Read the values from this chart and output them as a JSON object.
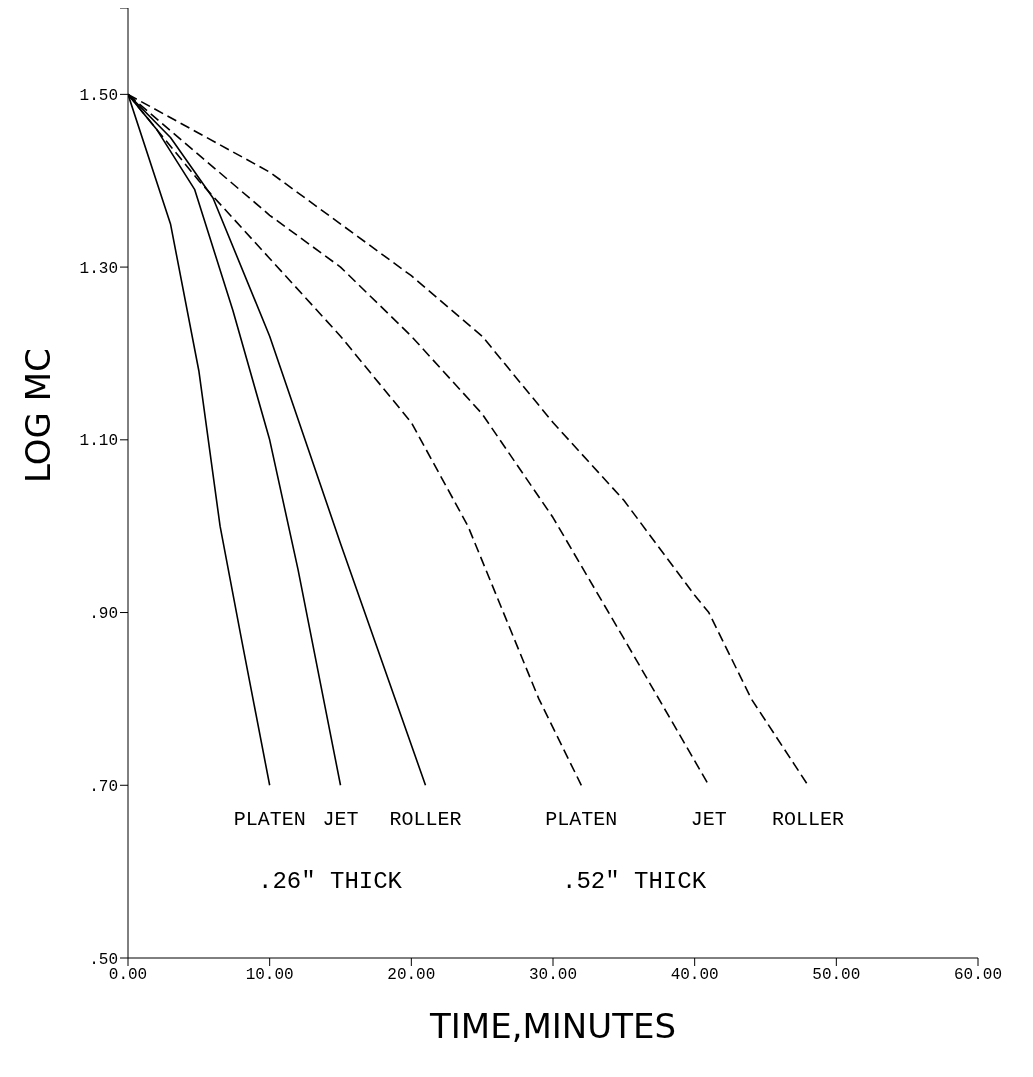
{
  "chart_data": {
    "type": "line",
    "xlabel": "TIME,MINUTES",
    "ylabel": "LOG MC",
    "xlim": [
      0,
      60
    ],
    "ylim": [
      0.5,
      1.6
    ],
    "xticks": [
      {
        "value": 0,
        "label": "0.00"
      },
      {
        "value": 10,
        "label": "10.00"
      },
      {
        "value": 20,
        "label": "20.00"
      },
      {
        "value": 30,
        "label": "30.00"
      },
      {
        "value": 40,
        "label": "40.00"
      },
      {
        "value": 50,
        "label": "50.00"
      },
      {
        "value": 60,
        "label": "60.00"
      }
    ],
    "yticks": [
      {
        "value": 0.5,
        "label": ".50"
      },
      {
        "value": 0.7,
        "label": ".70"
      },
      {
        "value": 0.9,
        "label": ".90"
      },
      {
        "value": 1.1,
        "label": "1.10"
      },
      {
        "value": 1.3,
        "label": "1.30"
      },
      {
        "value": 1.5,
        "label": "1.50"
      },
      {
        "value": 1.6,
        "label": null
      }
    ],
    "grid": false,
    "legend": false,
    "marker": "none",
    "series": [
      {
        "name": "PLATEN",
        "color": "#000000",
        "line_style": "solid",
        "x": [
          0,
          3,
          5,
          6.5,
          8,
          10
        ],
        "values": [
          1.5,
          1.35,
          1.18,
          1.0,
          0.87,
          0.7
        ]
      },
      {
        "name": "JET",
        "color": "#000000",
        "line_style": "solid",
        "x": [
          0,
          2,
          4.7,
          7.4,
          10,
          12,
          15
        ],
        "values": [
          1.5,
          1.46,
          1.39,
          1.25,
          1.1,
          0.95,
          0.7
        ]
      },
      {
        "name": "ROLLER",
        "color": "#000000",
        "line_style": "solid",
        "x": [
          0,
          3,
          6,
          10,
          15,
          21
        ],
        "values": [
          1.5,
          1.45,
          1.38,
          1.22,
          0.98,
          0.7
        ]
      },
      {
        "name": "PLATEN",
        "color": "#000000",
        "line_style": "dashed",
        "x": [
          0,
          5,
          10,
          15,
          20,
          24,
          27,
          29,
          32
        ],
        "values": [
          1.5,
          1.4,
          1.31,
          1.22,
          1.12,
          1.0,
          0.88,
          0.8,
          0.7
        ]
      },
      {
        "name": "JET",
        "color": "#000000",
        "line_style": "dashed",
        "x": [
          0,
          5,
          10,
          15,
          20,
          25,
          30,
          35,
          41
        ],
        "values": [
          1.5,
          1.43,
          1.36,
          1.3,
          1.22,
          1.13,
          1.01,
          0.87,
          0.7
        ]
      },
      {
        "name": "ROLLER",
        "color": "#000000",
        "line_style": "dashed",
        "x": [
          0,
          10,
          20,
          25,
          30,
          35,
          40,
          41,
          44,
          48
        ],
        "values": [
          1.5,
          1.41,
          1.29,
          1.22,
          1.12,
          1.03,
          0.92,
          0.9,
          0.8,
          0.7
        ]
      }
    ],
    "annotations": [
      ".26\" THICK",
      ".52\" THICK"
    ]
  }
}
